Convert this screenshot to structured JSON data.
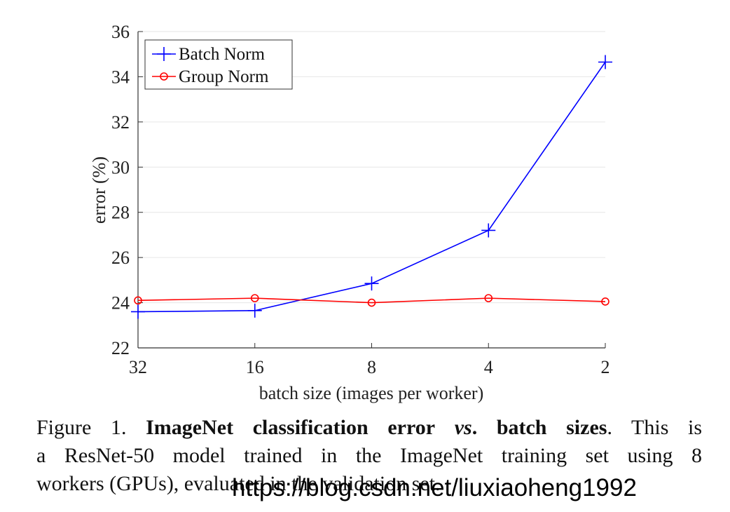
{
  "chart_data": {
    "type": "line",
    "xlabel": "batch size (images per worker)",
    "ylabel": "error (%)",
    "categories": [
      "32",
      "16",
      "8",
      "4",
      "2"
    ],
    "ylim": [
      22,
      36
    ],
    "yticks": [
      22,
      24,
      26,
      28,
      30,
      32,
      34,
      36
    ],
    "grid": "horizontal",
    "legend_position": "top-left",
    "series": [
      {
        "name": "Batch Norm",
        "color": "#0000ff",
        "marker": "plus",
        "values": [
          23.6,
          23.65,
          24.85,
          27.2,
          34.65
        ]
      },
      {
        "name": "Group Norm",
        "color": "#ff0000",
        "marker": "circle",
        "values": [
          24.1,
          24.2,
          24.0,
          24.2,
          24.05
        ]
      }
    ]
  },
  "caption": {
    "prefix": "Figure 1.",
    "bold_1": "ImageNet classification error",
    "bold_italic": "vs",
    "bold_2": ". batch sizes",
    "rest_1": ". This is",
    "line2": "a ResNet-50 model trained in the ImageNet training set using 8",
    "line3_visible": "workers (GPUs), evaluated in the validation set."
  },
  "watermark": "https://blog.csdn.net/liuxiaoheng1992"
}
